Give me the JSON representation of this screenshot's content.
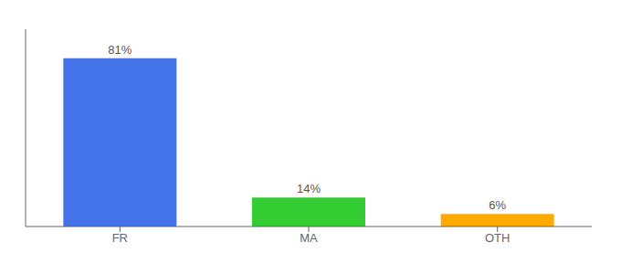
{
  "chart_data": {
    "type": "bar",
    "categories": [
      "FR",
      "MA",
      "OTH"
    ],
    "values": [
      81,
      14,
      6
    ],
    "value_labels": [
      "81%",
      "14%",
      "6%"
    ],
    "colors": [
      "#4472e8",
      "#33cc33",
      "#ffaa00"
    ],
    "ylim": [
      0,
      95
    ],
    "data_labels": true,
    "tick_labels": "x"
  }
}
